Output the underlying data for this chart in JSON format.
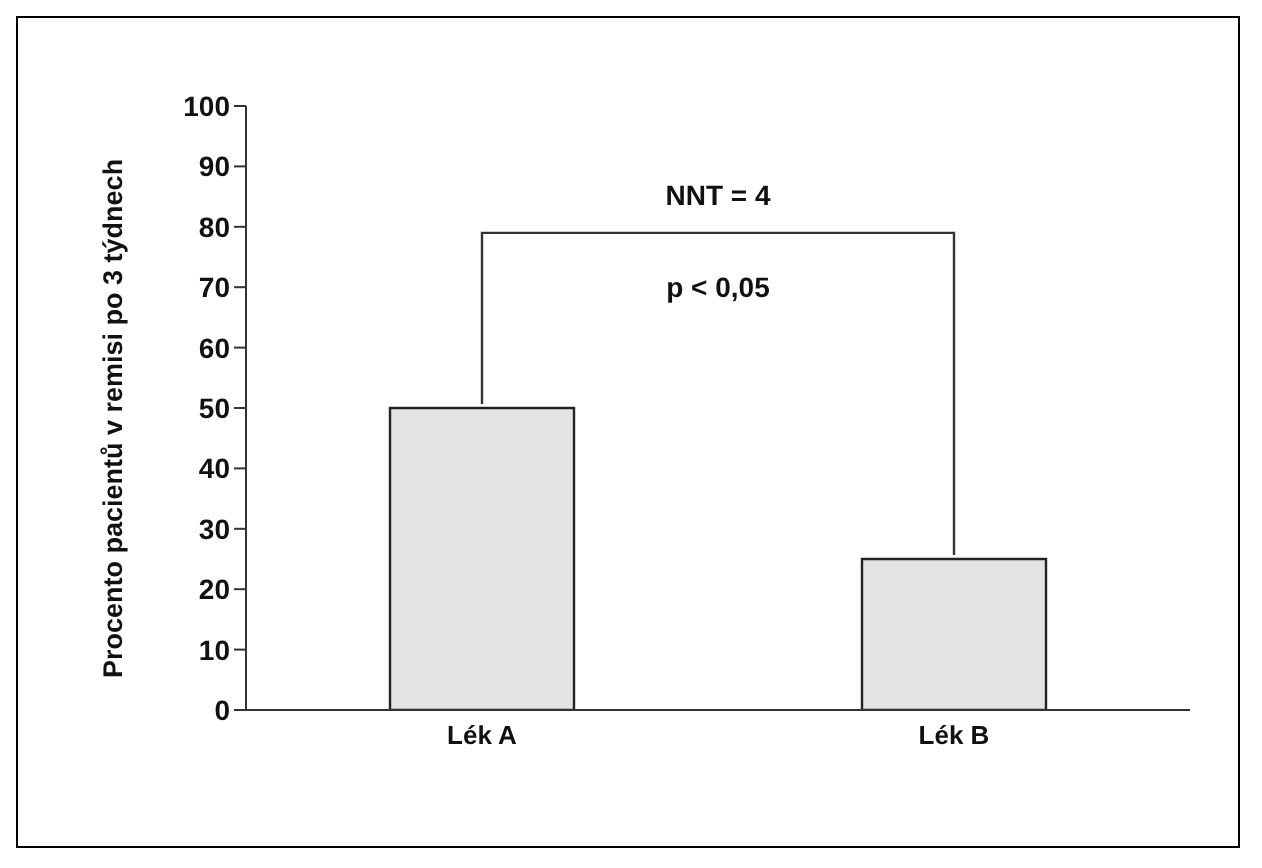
{
  "chart_data": {
    "type": "bar",
    "ylabel": "Procento pacientů v remisi po 3 týdnech",
    "categories": [
      "Lék A",
      "Lék B"
    ],
    "values": [
      50,
      25
    ],
    "color": "#e3e4e6",
    "ylim": [
      0,
      100
    ],
    "yticks": [
      0,
      10,
      20,
      30,
      40,
      50,
      60,
      70,
      80,
      90,
      100
    ],
    "grid": false,
    "legend": false,
    "annotations": [
      "NNT = 4",
      "p < 0,05"
    ]
  }
}
